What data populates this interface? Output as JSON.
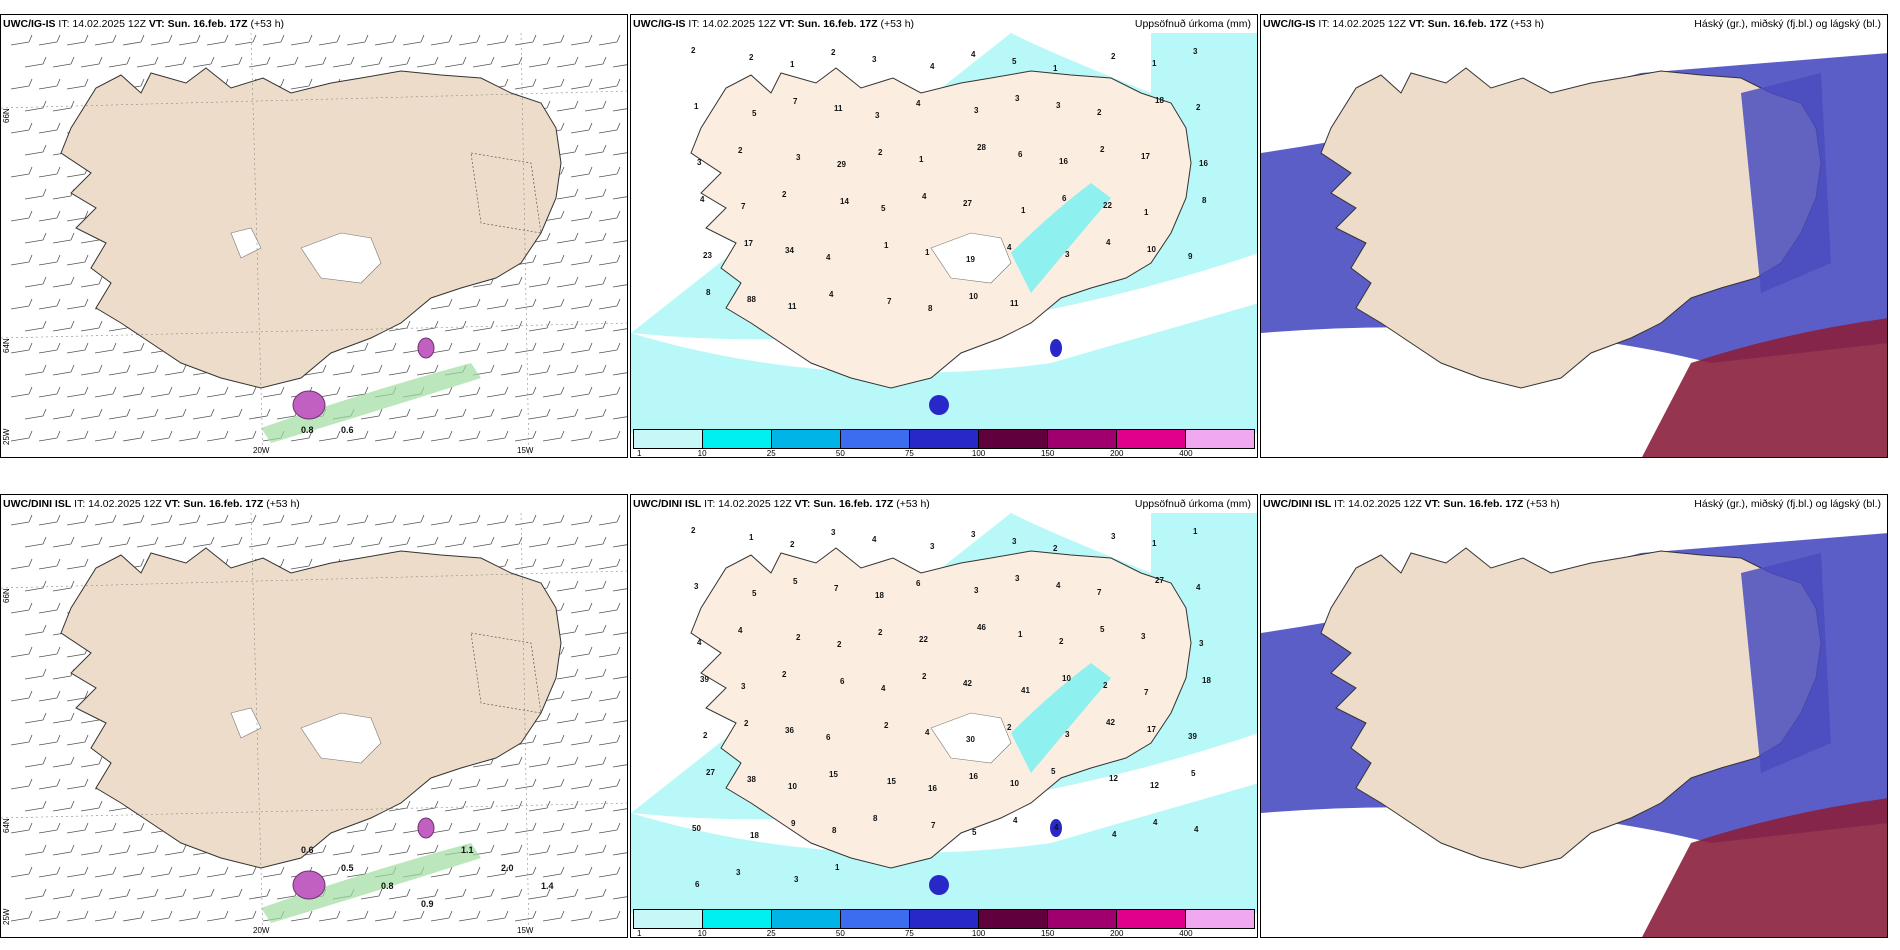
{
  "panels": [
    {
      "model": "UWC/IG-IS",
      "it": "IT: 14.02.2025 12Z",
      "vt_label": "VT:",
      "vt": "Sun. 16.feb. 17Z",
      "lead": "(+53 h)",
      "right": ""
    },
    {
      "model": "UWC/IG-IS",
      "it": "IT: 14.02.2025 12Z",
      "vt_label": "VT:",
      "vt": "Sun. 16.feb. 17Z",
      "lead": "(+53 h)",
      "right": "Uppsöfnuð úrkoma (mm)"
    },
    {
      "model": "UWC/IG-IS",
      "it": "IT: 14.02.2025 12Z",
      "vt_label": "VT:",
      "vt": "Sun. 16.feb. 17Z",
      "lead": "(+53 h)",
      "right": "Háský (gr.), miðský (fj.bl.) og lágský (bl.)"
    },
    {
      "model": "UWC/DINI ISL",
      "it": "IT: 14.02.2025 12Z",
      "vt_label": "VT:",
      "vt": "Sun. 16.feb. 17Z",
      "lead": "(+53 h)",
      "right": ""
    },
    {
      "model": "UWC/DINI ISL",
      "it": "IT: 14.02.2025 12Z",
      "vt_label": "VT:",
      "vt": "Sun. 16.feb. 17Z",
      "lead": "(+53 h)",
      "right": "Uppsöfnuð úrkoma (mm)"
    },
    {
      "model": "UWC/DINI ISL",
      "it": "IT: 14.02.2025 12Z",
      "vt_label": "VT:",
      "vt": "Sun. 16.feb. 17Z",
      "lead": "(+53 h)",
      "right": "Háský (gr.), miðský (fj.bl.) og lágský (bl.)"
    }
  ],
  "lat_labels": {
    "a": "66N",
    "b": "64N",
    "c": "25W"
  },
  "lon_labels": {
    "a": "20W",
    "b": "15W"
  },
  "colorbar": {
    "labels": [
      "1",
      "10",
      "25",
      "50",
      "75",
      "100",
      "150",
      "200",
      "400"
    ],
    "colors": [
      "#c8f7f7",
      "#00f0f0",
      "#00b4e8",
      "#3c6cf0",
      "#2828c8",
      "#60003c",
      "#a0006e",
      "#e0008c",
      "#f0a8f0"
    ]
  },
  "precip_labels_top": [
    "2",
    "2",
    "1",
    "2",
    "3",
    "4",
    "4",
    "5",
    "1",
    "2",
    "1",
    "3",
    "1",
    "5",
    "7",
    "11",
    "3",
    "4",
    "3",
    "3",
    "3",
    "2",
    "18",
    "2",
    "3",
    "2",
    "3",
    "29",
    "2",
    "1",
    "28",
    "6",
    "16",
    "2",
    "17",
    "16",
    "4",
    "7",
    "2",
    "14",
    "5",
    "4",
    "27",
    "1",
    "6",
    "22",
    "1",
    "8",
    "23",
    "17",
    "34",
    "4",
    "1",
    "1",
    "19",
    "4",
    "3",
    "4",
    "10",
    "9",
    "8",
    "88",
    "11",
    "4",
    "7",
    "8",
    "10",
    "11"
  ],
  "precip_labels_bottom": [
    "2",
    "1",
    "2",
    "3",
    "4",
    "3",
    "3",
    "3",
    "2",
    "3",
    "1",
    "1",
    "3",
    "5",
    "5",
    "7",
    "18",
    "6",
    "3",
    "3",
    "4",
    "7",
    "27",
    "4",
    "4",
    "4",
    "2",
    "2",
    "2",
    "22",
    "46",
    "1",
    "2",
    "5",
    "3",
    "3",
    "39",
    "3",
    "2",
    "6",
    "4",
    "2",
    "42",
    "41",
    "10",
    "2",
    "7",
    "18",
    "2",
    "2",
    "36",
    "6",
    "2",
    "4",
    "30",
    "2",
    "3",
    "42",
    "17",
    "39",
    "27",
    "38",
    "10",
    "15",
    "15",
    "16",
    "16",
    "10",
    "5",
    "12",
    "12",
    "5",
    "50",
    "18",
    "9",
    "8",
    "8",
    "7",
    "5",
    "4",
    "4",
    "4",
    "4",
    "4",
    "6",
    "3",
    "3",
    "1"
  ],
  "barb_values_top": [
    "0.8",
    "0.6"
  ],
  "barb_values_bottom": [
    "0.6",
    "0.5",
    "0.8",
    "0.9",
    "1.1",
    "2.0",
    "1.4"
  ]
}
